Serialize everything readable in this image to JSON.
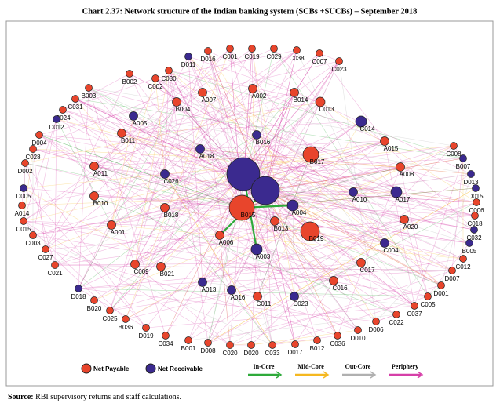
{
  "title": "Chart 2.37: Network structure of the Indian banking system (SCBs +SUCBs) – September 2018",
  "nodes": [
    {
      "label": "D011",
      "color": "#3b2a8f"
    },
    {
      "label": "D016",
      "color": "#e8452c"
    },
    {
      "label": "C001",
      "color": "#e8452c"
    },
    {
      "label": "C019",
      "color": "#e8452c"
    },
    {
      "label": "C029",
      "color": "#e8452c"
    },
    {
      "label": "C038",
      "color": "#e8452c"
    },
    {
      "label": "C007",
      "color": "#e8452c"
    },
    {
      "label": "C023",
      "color": "#e8452c"
    },
    {
      "label": "C030",
      "color": "#e8452c"
    },
    {
      "label": "B002",
      "color": "#e8452c"
    },
    {
      "label": "C002",
      "color": "#e8452c"
    },
    {
      "label": "B003",
      "color": "#e8452c"
    },
    {
      "label": "C031",
      "color": "#e8452c"
    },
    {
      "label": "C024",
      "color": "#e8452c"
    },
    {
      "label": "D012",
      "color": "#3b2a8f"
    },
    {
      "label": "D004",
      "color": "#e8452c"
    },
    {
      "label": "C028",
      "color": "#e8452c"
    },
    {
      "label": "D002",
      "color": "#e8452c"
    },
    {
      "label": "D005",
      "color": "#3b2a8f"
    },
    {
      "label": "A014",
      "color": "#e8452c"
    },
    {
      "label": "C015",
      "color": "#e8452c"
    },
    {
      "label": "C003",
      "color": "#e8452c"
    },
    {
      "label": "C027",
      "color": "#e8452c"
    },
    {
      "label": "C021",
      "color": "#e8452c"
    },
    {
      "label": "D018",
      "color": "#3b2a8f"
    },
    {
      "label": "B020",
      "color": "#e8452c"
    },
    {
      "label": "C025",
      "color": "#e8452c"
    },
    {
      "label": "B036",
      "color": "#e8452c"
    },
    {
      "label": "D019",
      "color": "#e8452c"
    },
    {
      "label": "C034",
      "color": "#e8452c"
    },
    {
      "label": "B001",
      "color": "#e8452c"
    },
    {
      "label": "D008",
      "color": "#e8452c"
    },
    {
      "label": "C020",
      "color": "#e8452c"
    },
    {
      "label": "D020",
      "color": "#e8452c"
    },
    {
      "label": "C033",
      "color": "#e8452c"
    },
    {
      "label": "D017",
      "color": "#e8452c"
    },
    {
      "label": "B012",
      "color": "#e8452c"
    },
    {
      "label": "C036",
      "color": "#e8452c"
    },
    {
      "label": "D010",
      "color": "#e8452c"
    },
    {
      "label": "D006",
      "color": "#e8452c"
    },
    {
      "label": "C022",
      "color": "#e8452c"
    },
    {
      "label": "C037",
      "color": "#e8452c"
    },
    {
      "label": "C005",
      "color": "#e8452c"
    },
    {
      "label": "D001",
      "color": "#e8452c"
    },
    {
      "label": "D007",
      "color": "#e8452c"
    },
    {
      "label": "C012",
      "color": "#e8452c"
    },
    {
      "label": "B005",
      "color": "#3b2a8f"
    },
    {
      "label": "C032",
      "color": "#3b2a8f"
    },
    {
      "label": "C018",
      "color": "#e8452c"
    },
    {
      "label": "C006",
      "color": "#e8452c"
    },
    {
      "label": "D015",
      "color": "#3b2a8f"
    },
    {
      "label": "D013",
      "color": "#3b2a8f"
    },
    {
      "label": "B007",
      "color": "#3b2a8f"
    },
    {
      "label": "C008",
      "color": "#e8452c"
    },
    {
      "label": "A007",
      "color": "#e8452c"
    },
    {
      "label": "A002",
      "color": "#e8452c"
    },
    {
      "label": "B014",
      "color": "#e8452c"
    },
    {
      "label": "C013",
      "color": "#e8452c"
    },
    {
      "label": "C014",
      "color": "#3b2a8f"
    },
    {
      "label": "A015",
      "color": "#e8452c"
    },
    {
      "label": "A008",
      "color": "#e8452c"
    },
    {
      "label": "A017",
      "color": "#3b2a8f"
    },
    {
      "label": "A020",
      "color": "#e8452c"
    },
    {
      "label": "C004",
      "color": "#3b2a8f"
    },
    {
      "label": "C017",
      "color": "#e8452c"
    },
    {
      "label": "C016",
      "color": "#e8452c"
    },
    {
      "label": "C023",
      "color": "#3b2a8f"
    },
    {
      "label": "C011",
      "color": "#e8452c"
    },
    {
      "label": "A016",
      "color": "#3b2a8f"
    },
    {
      "label": "A013",
      "color": "#3b2a8f"
    },
    {
      "label": "B021",
      "color": "#e8452c"
    },
    {
      "label": "C009",
      "color": "#e8452c"
    },
    {
      "label": "A001",
      "color": "#e8452c"
    },
    {
      "label": "B010",
      "color": "#e8452c"
    },
    {
      "label": "A011",
      "color": "#e8452c"
    },
    {
      "label": "B011",
      "color": "#e8452c"
    },
    {
      "label": "A005",
      "color": "#3b2a8f"
    },
    {
      "label": "B004",
      "color": "#e8452c"
    },
    {
      "label": "C026",
      "color": "#3b2a8f"
    },
    {
      "label": "B018",
      "color": "#e8452c"
    },
    {
      "label": "A006",
      "color": "#e8452c"
    },
    {
      "label": "A018",
      "color": "#3b2a8f"
    },
    {
      "label": "B016",
      "color": "#3b2a8f"
    },
    {
      "label": "B017",
      "color": "#e8452c"
    },
    {
      "label": "A010",
      "color": "#3b2a8f"
    },
    {
      "label": "A004",
      "color": "#3b2a8f"
    },
    {
      "label": "B013",
      "color": "#e8452c"
    },
    {
      "label": "B019",
      "color": "#e8452c"
    },
    {
      "label": "A003",
      "color": "#3b2a8f"
    },
    {
      "label": "B015",
      "color": "#e8452c"
    }
  ],
  "legend": {
    "nodes": [
      {
        "label": "Net Payable",
        "color": "#e8452c"
      },
      {
        "label": "Net Receivable",
        "color": "#3b2a8f"
      }
    ],
    "edges": [
      {
        "label": "In-Core",
        "color": "#2eaa3a"
      },
      {
        "label": "Mid-Core",
        "color": "#f5b820"
      },
      {
        "label": "Out-Core",
        "color": "#b0b0b0"
      },
      {
        "label": "Periphery",
        "color": "#d63fa8"
      }
    ]
  },
  "source": {
    "label": "Source:",
    "text": " RBI supervisory returns and staff calculations."
  }
}
